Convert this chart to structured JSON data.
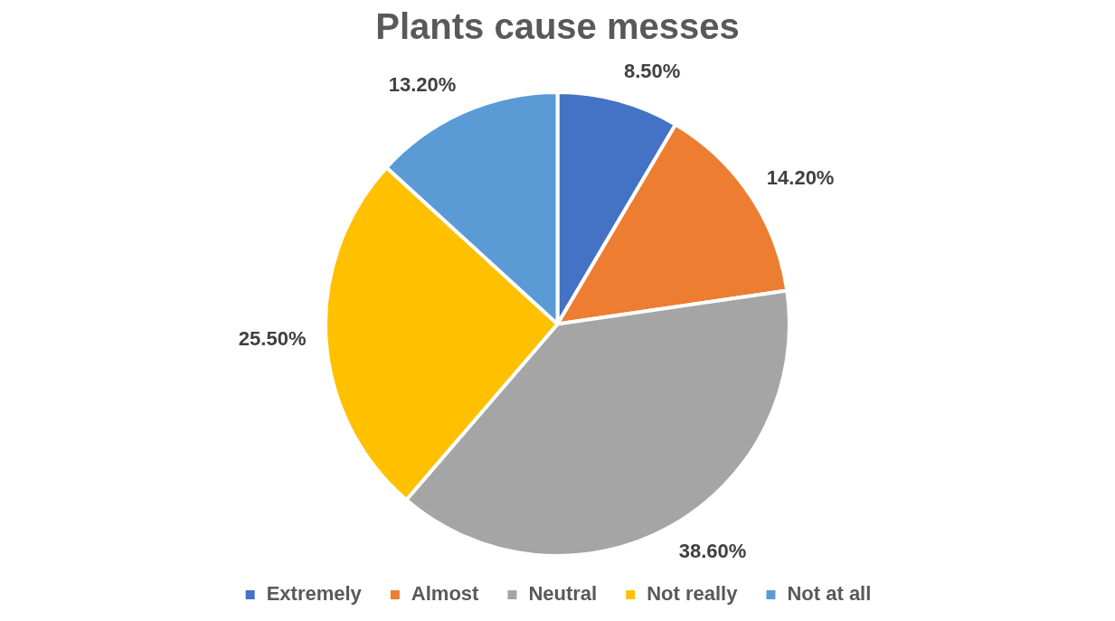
{
  "chart_data": {
    "type": "pie",
    "title": "Plants cause messes",
    "categories": [
      "Extremely",
      "Almost",
      "Neutral",
      "Not really",
      "Not at all"
    ],
    "values": [
      8.5,
      14.2,
      38.6,
      25.5,
      13.2
    ],
    "colors": [
      "#4472c4",
      "#ed7d31",
      "#a5a5a5",
      "#ffc000",
      "#5b9bd5"
    ],
    "value_labels": [
      "8.50%",
      "14.20%",
      "38.60%",
      "25.50%",
      "13.20%"
    ],
    "legend": "bottom"
  }
}
